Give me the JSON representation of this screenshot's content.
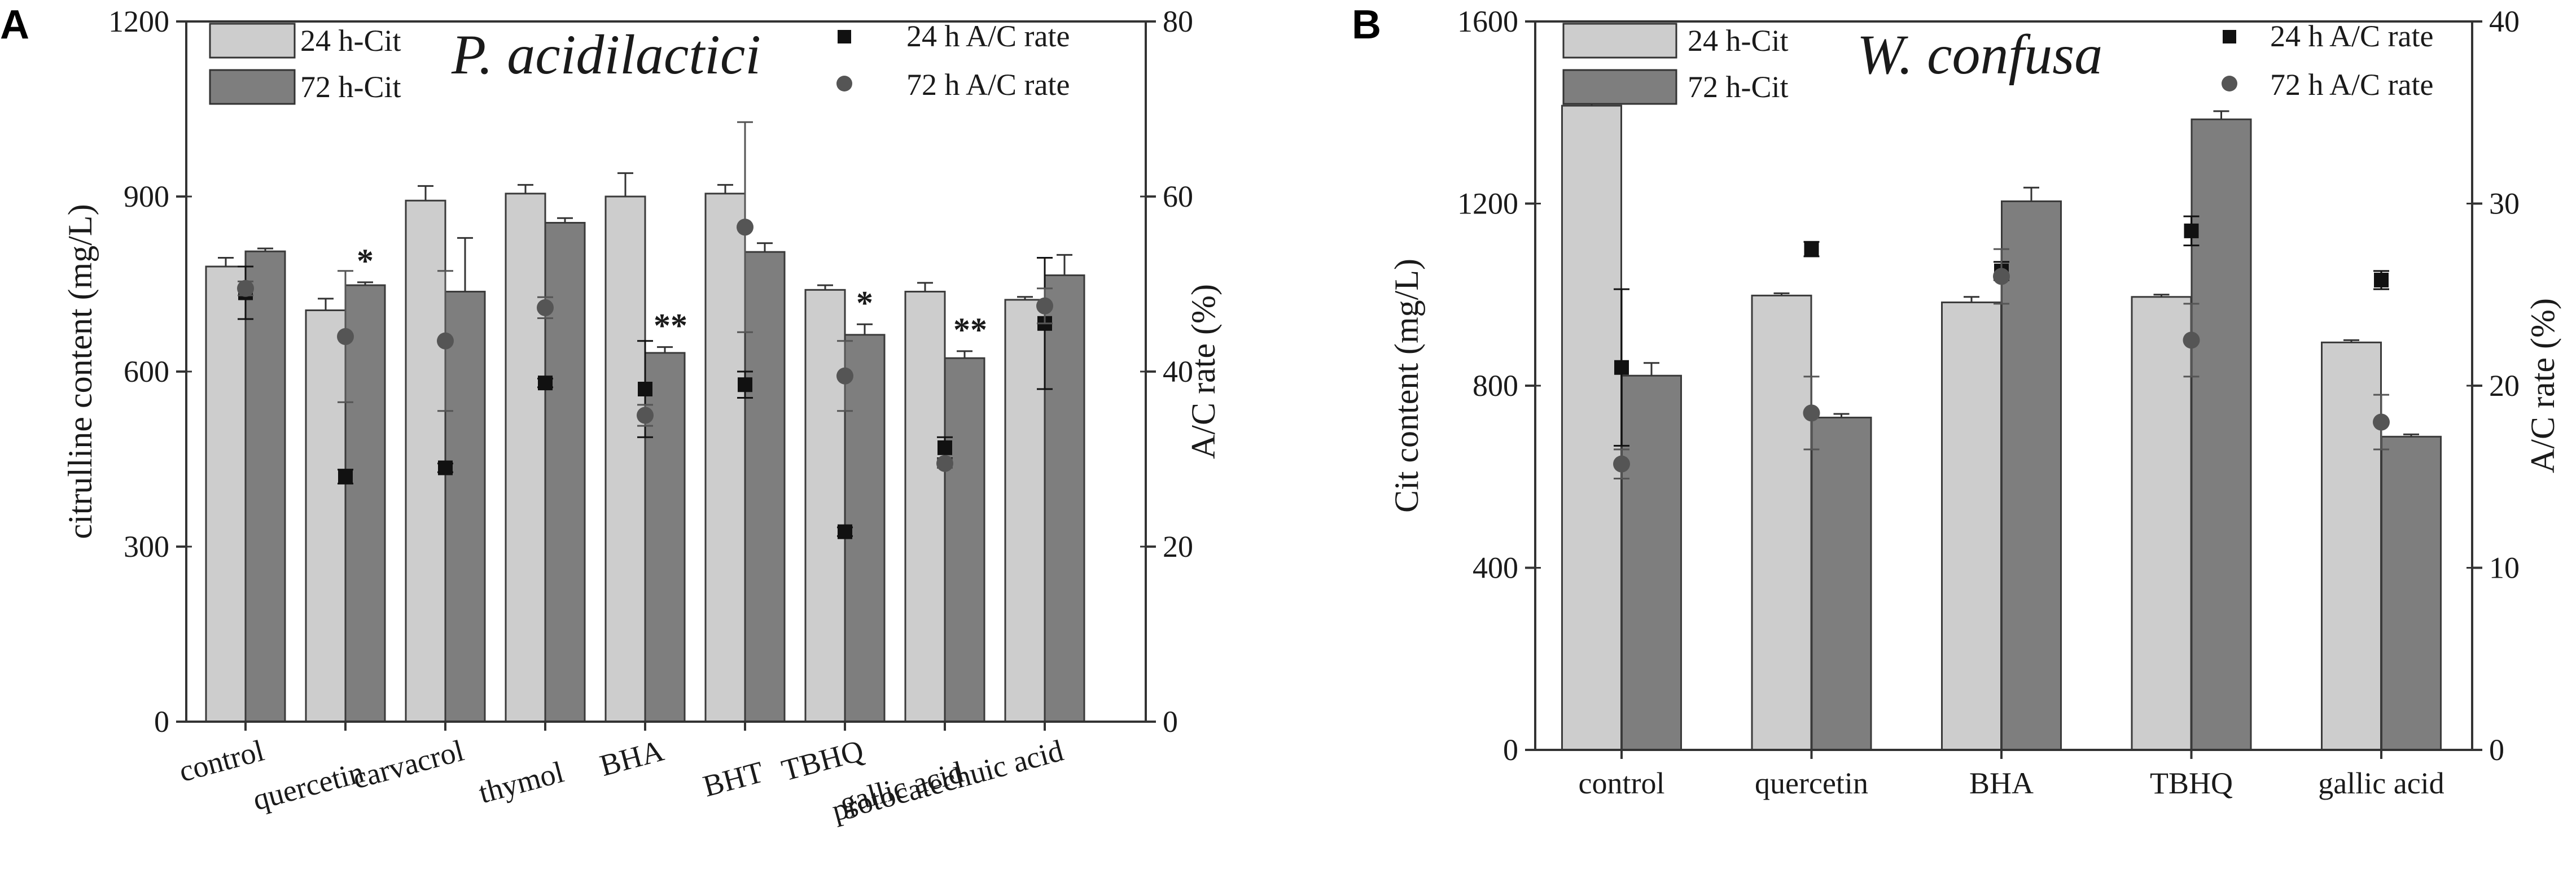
{
  "colors": {
    "bar24": "#cdcdcd",
    "bar72": "#7e7e7e",
    "sq": "#111111",
    "circ": "#555555",
    "axis": "#333333"
  },
  "chart_data": [
    {
      "type": "bar",
      "panel_label": "A",
      "title": "P. acidilactici",
      "ylabel": "citrulline content (mg/L)",
      "y2label": "A/C rate (%)",
      "ylim": [
        0,
        1200
      ],
      "y2lim": [
        0,
        80
      ],
      "yticks": [
        "0",
        "300",
        "600",
        "900",
        "1200"
      ],
      "y2ticks": [
        "0",
        "20",
        "40",
        "60",
        "80"
      ],
      "categories": [
        "control",
        "quercetin",
        "carvacrol",
        "thymol",
        "BHA",
        "BHT",
        "TBHQ",
        "gallic acid",
        "protocatechuic acid"
      ],
      "series": [
        {
          "name": "24 h-Cit",
          "values": [
            780,
            705,
            893,
            905,
            900,
            905,
            740,
            737,
            723
          ],
          "errors": [
            15,
            20,
            25,
            15,
            40,
            15,
            8,
            15,
            5
          ]
        },
        {
          "name": "72 h-Cit",
          "values": [
            806,
            748,
            737,
            855,
            632,
            805,
            663,
            623,
            765
          ],
          "errors": [
            5,
            5,
            92,
            8,
            10,
            15,
            18,
            12,
            35
          ]
        }
      ],
      "scatter": [
        {
          "name": "24 h A/C rate",
          "marker": "square",
          "values": [
            49.0,
            28.0,
            29.0,
            38.7,
            38.0,
            38.5,
            21.7,
            31.3,
            45.5
          ],
          "errors": [
            3.0,
            0.8,
            0.5,
            0.5,
            5.5,
            1.5,
            0.5,
            1.2,
            7.5
          ]
        },
        {
          "name": "72 h A/C rate",
          "marker": "circle",
          "values": [
            49.5,
            44.0,
            43.5,
            47.3,
            35.0,
            56.5,
            39.5,
            29.5,
            47.5
          ],
          "errors": [
            0.8,
            7.5,
            8.0,
            1.2,
            1.2,
            12.0,
            4.0,
            0.5,
            2.0
          ]
        }
      ],
      "annotations": [
        {
          "category": "quercetin",
          "text": "*"
        },
        {
          "category": "BHA",
          "text": "**"
        },
        {
          "category": "TBHQ",
          "text": "*"
        },
        {
          "category": "gallic acid",
          "text": "**"
        }
      ]
    },
    {
      "type": "bar",
      "panel_label": "B",
      "title": "W. confusa",
      "ylabel": "Cit content (mg/L)",
      "y2label": "A/C rate (%)",
      "ylim": [
        0,
        1600
      ],
      "y2lim": [
        0,
        40
      ],
      "yticks": [
        "0",
        "400",
        "800",
        "1200",
        "1600"
      ],
      "y2ticks": [
        "0",
        "10",
        "20",
        "30",
        "40"
      ],
      "categories": [
        "control",
        "quercetin",
        "BHA",
        "TBHQ",
        "gallic acid"
      ],
      "series": [
        {
          "name": "24 h-Cit",
          "values": [
            1415,
            998,
            983,
            995,
            895
          ],
          "errors": [
            12,
            5,
            12,
            5,
            5
          ]
        },
        {
          "name": "72 h-Cit",
          "values": [
            822,
            730,
            1205,
            1385,
            688
          ],
          "errors": [
            28,
            8,
            30,
            18,
            5
          ]
        }
      ],
      "scatter": [
        {
          "name": "24 h A/C rate",
          "marker": "square",
          "values": [
            21.0,
            27.5,
            26.3,
            28.5,
            25.8
          ],
          "errors": [
            4.3,
            0.4,
            0.5,
            0.8,
            0.5
          ]
        },
        {
          "name": "72 h A/C rate",
          "marker": "circle",
          "values": [
            15.7,
            18.5,
            26.0,
            22.5,
            18.0
          ],
          "errors": [
            0.8,
            2.0,
            1.5,
            2.0,
            1.5
          ]
        }
      ],
      "annotations": []
    }
  ]
}
